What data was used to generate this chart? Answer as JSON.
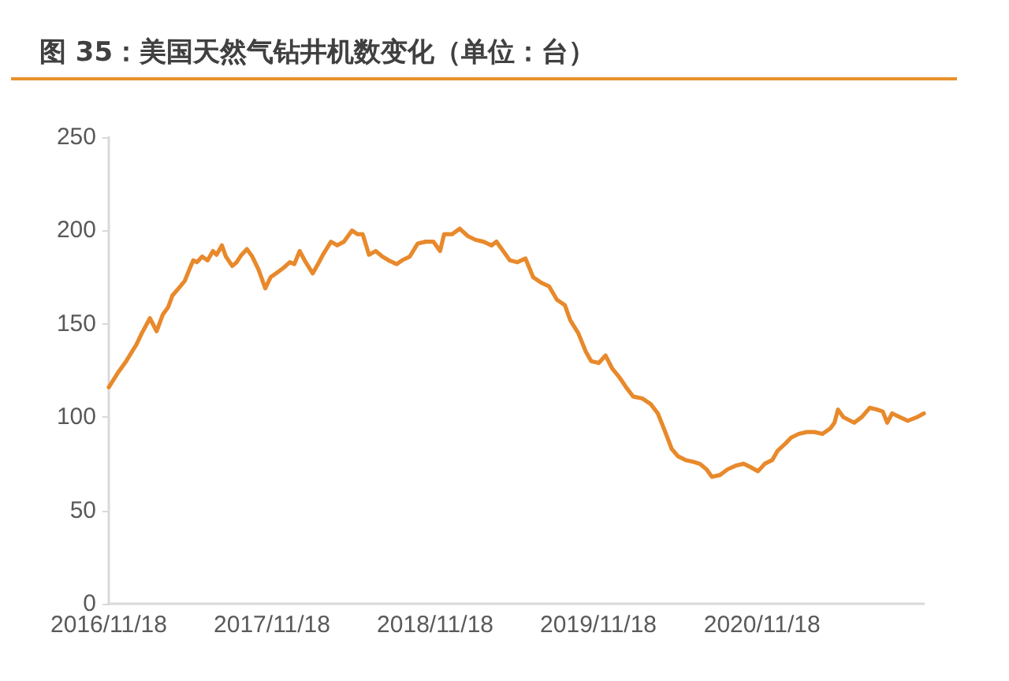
{
  "chart_data": {
    "type": "line",
    "title": "图 35：美国天然气钻井机数变化（单位：台）",
    "x": [
      "2016-11-18",
      "2016-12-09",
      "2016-12-27",
      "2017-01-19",
      "2017-01-31",
      "2017-02-18",
      "2017-03-05",
      "2017-03-19",
      "2017-03-31",
      "2017-04-09",
      "2017-04-23",
      "2017-05-07",
      "2017-05-17",
      "2017-05-26",
      "2017-06-03",
      "2017-06-15",
      "2017-06-27",
      "2017-07-09",
      "2017-07-17",
      "2017-07-29",
      "2017-08-07",
      "2017-08-21",
      "2017-08-31",
      "2017-09-11",
      "2017-09-23",
      "2017-10-05",
      "2017-10-19",
      "2017-11-03",
      "2017-11-15",
      "2017-11-27",
      "2017-12-14",
      "2017-12-28",
      "2018-01-07",
      "2018-01-19",
      "2018-01-30",
      "2018-02-17",
      "2018-03-01",
      "2018-03-12",
      "2018-03-30",
      "2018-04-13",
      "2018-04-28",
      "2018-05-16",
      "2018-05-28",
      "2018-06-09",
      "2018-06-23",
      "2018-07-08",
      "2018-07-23",
      "2018-08-06",
      "2018-08-24",
      "2018-09-05",
      "2018-09-22",
      "2018-10-10",
      "2018-10-28",
      "2018-11-14",
      "2018-11-29",
      "2018-12-08",
      "2018-12-26",
      "2019-01-12",
      "2019-01-30",
      "2019-02-16",
      "2019-03-06",
      "2019-03-24",
      "2019-04-04",
      "2019-04-16",
      "2019-05-04",
      "2019-05-21",
      "2019-06-08",
      "2019-06-25",
      "2019-07-13",
      "2019-07-31",
      "2019-08-17",
      "2019-09-04",
      "2019-09-16",
      "2019-10-04",
      "2019-10-21",
      "2019-11-02",
      "2019-11-19",
      "2019-12-04",
      "2019-12-19",
      "2020-01-05",
      "2020-01-19",
      "2020-02-04",
      "2020-02-24",
      "2020-03-14",
      "2020-03-30",
      "2020-04-14",
      "2020-04-30",
      "2020-05-14",
      "2020-05-31",
      "2020-06-18",
      "2020-07-02",
      "2020-07-17",
      "2020-07-29",
      "2020-08-16",
      "2020-09-02",
      "2020-09-20",
      "2020-10-08",
      "2020-10-25",
      "2020-11-09",
      "2020-11-24",
      "2020-12-11",
      "2020-12-23",
      "2021-01-10",
      "2021-01-22",
      "2021-02-08",
      "2021-02-26",
      "2021-03-15",
      "2021-04-02",
      "2021-04-20",
      "2021-04-29",
      "2021-05-07",
      "2021-05-19",
      "2021-06-12",
      "2021-06-29",
      "2021-07-17",
      "2021-08-03",
      "2021-08-15",
      "2021-08-25",
      "2021-09-05",
      "2021-09-22",
      "2021-10-10",
      "2021-10-31",
      "2021-11-15"
    ],
    "series": [
      {
        "color": "#e8892b",
        "values": [
          116,
          124,
          130,
          139,
          145,
          153,
          146,
          155,
          159,
          165,
          169,
          173,
          179,
          184,
          183,
          186,
          184,
          189,
          187,
          192,
          186,
          181,
          183,
          187,
          190,
          186,
          179,
          169,
          175,
          177,
          180,
          183,
          182,
          189,
          184,
          177,
          182,
          187,
          194,
          192,
          194,
          200,
          198,
          198,
          187,
          189,
          186,
          184,
          182,
          184,
          186,
          193,
          194,
          194,
          189,
          198,
          198,
          201,
          197,
          195,
          194,
          192,
          194,
          190,
          184,
          183,
          185,
          175,
          172,
          170,
          163,
          160,
          152,
          145,
          135,
          130,
          129,
          133,
          126,
          121,
          116,
          111,
          110,
          107,
          102,
          93,
          83,
          79,
          77,
          76,
          75,
          72,
          68,
          69,
          72,
          74,
          75,
          73,
          71,
          75,
          77,
          82,
          86,
          89,
          91,
          92,
          92,
          91,
          94,
          97,
          104,
          100,
          97,
          100,
          105,
          104,
          103,
          97,
          102,
          100,
          98,
          100,
          102
        ]
      }
    ],
    "xlim": [
      "2016-11-18",
      "2021-11-15"
    ],
    "xticks": [
      {
        "value": "2016-11-18",
        "label": "2016/11/18"
      },
      {
        "value": "2017-11-18",
        "label": "2017/11/18"
      },
      {
        "value": "2018-11-18",
        "label": "2018/11/18"
      },
      {
        "value": "2019-11-18",
        "label": "2019/11/18"
      },
      {
        "value": "2020-11-18",
        "label": "2020/11/18"
      }
    ],
    "ylim": [
      0,
      250
    ],
    "yticks": [
      0,
      50,
      100,
      150,
      200,
      250
    ]
  }
}
